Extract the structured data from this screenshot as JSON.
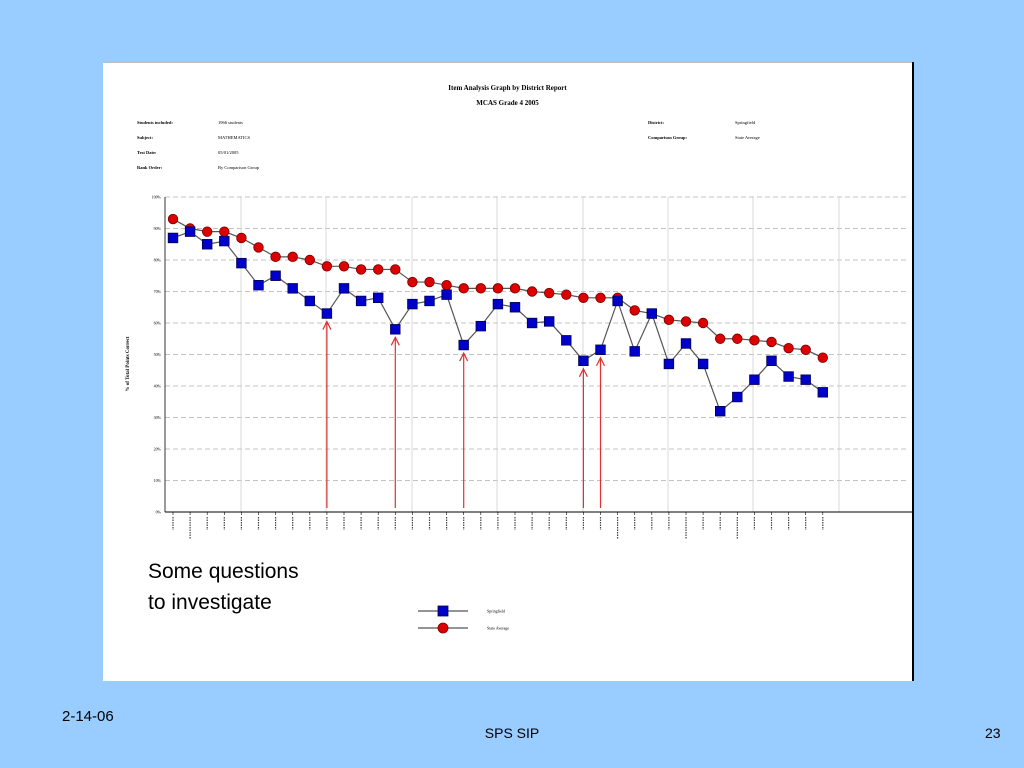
{
  "report": {
    "title": "Item Analysis Graph by District Report",
    "subtitle": "MCAS Grade 4 2005",
    "students_label": "Students included:",
    "students_value": "1966 students",
    "subject_label": "Subject:",
    "subject_value": "MATHEMATICS",
    "test_date_label": "Test Date:",
    "test_date_value": "05/01/2005",
    "rank_label": "Rank Order:",
    "rank_value": "By Comparison Group",
    "district_label": "District:",
    "district_value": "Springfield",
    "comparison_label": "Comparison Group:",
    "comparison_value": "State Average"
  },
  "chart_data": {
    "type": "line",
    "ylabel": "% of Total Points Correct",
    "ylim": [
      0,
      100
    ],
    "yticks": [
      0,
      10,
      20,
      30,
      40,
      50,
      60,
      70,
      80,
      90,
      100
    ],
    "ytick_labels": [
      "0%",
      "10%",
      "20%",
      "30%",
      "40%",
      "50%",
      "60%",
      "70%",
      "80%",
      "90%",
      "100%"
    ],
    "grid": true,
    "legend_position": "bottom",
    "series": [
      {
        "name": "Springfield",
        "marker": "square",
        "color": "#0000cc",
        "values": [
          87,
          89,
          85,
          86,
          79,
          72,
          75,
          71,
          67,
          63,
          71,
          67,
          68,
          58,
          66,
          67,
          69,
          53,
          59,
          66,
          65,
          60,
          60.5,
          54.5,
          48,
          51.5,
          67,
          51,
          63,
          47,
          53.5,
          47,
          32,
          36.5,
          42,
          48,
          43,
          42,
          38
        ]
      },
      {
        "name": "State Average",
        "marker": "circle",
        "color": "#dd0000",
        "values": [
          93,
          90,
          89,
          89,
          87,
          84,
          81,
          81,
          80,
          78,
          78,
          77,
          77,
          77,
          73,
          73,
          72,
          71,
          71,
          71,
          71,
          70,
          69.5,
          69,
          68,
          68,
          68,
          64,
          63,
          61,
          60.5,
          60,
          55,
          55,
          54.5,
          54,
          52,
          51.5,
          49
        ]
      }
    ],
    "highlight_arrows_at_index": [
      9,
      13,
      17,
      24,
      25
    ]
  },
  "callout": {
    "line1": "Some questions",
    "line2": "to investigate"
  },
  "footer": {
    "date": "2-14-06",
    "center": "SPS SIP",
    "page": "23"
  },
  "colors": {
    "slide_background": "#99ccff",
    "district_series": "#0000cc",
    "state_series": "#dd0000",
    "arrow": "#e03030"
  }
}
